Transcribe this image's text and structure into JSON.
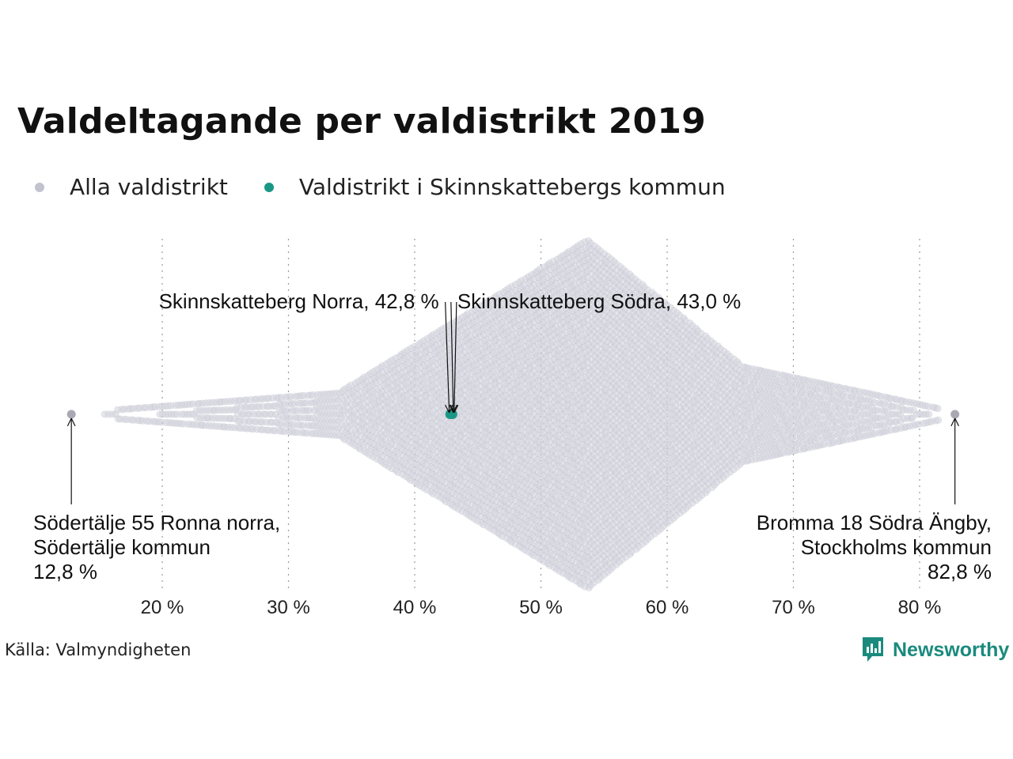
{
  "title": "Valdeltagande per valdistrikt 2019",
  "legend": [
    {
      "label": "Alla valdistrikt",
      "color": "#c3c3cf"
    },
    {
      "label": "Valdistrikt i Skinnskattebergs kommun",
      "color": "#1a9885"
    }
  ],
  "source": "Källa: Valmyndigheten",
  "brand": {
    "name": "Newsworthy",
    "icon": "newsworthy-logo-icon",
    "color": "#1a8a7d"
  },
  "chart_data": {
    "type": "scatter",
    "subtype": "beeswarm",
    "title": "Valdeltagande per valdistrikt 2019",
    "x_unit": "%",
    "xlim": [
      12,
      85
    ],
    "x_ticks": [
      20,
      30,
      40,
      50,
      60,
      70,
      80
    ],
    "x_tick_labels": [
      "20 %",
      "30 %",
      "40 %",
      "50 %",
      "60 %",
      "70 %",
      "80 %"
    ],
    "grid": "vertical dotted",
    "legend_position": "top-left",
    "distribution": {
      "series": "Alla valdistrikt",
      "color": "#c3c3cf",
      "min": 12.8,
      "max": 82.8,
      "mode": 53.7
    },
    "highlight_series": {
      "name": "Valdistrikt i Skinnskattebergs kommun",
      "color": "#1a9885",
      "points": [
        {
          "name": "Skinnskatteberg Norra",
          "value": 42.8,
          "label": "Skinnskatteberg Norra, 42,8 %"
        },
        {
          "name": "Skinnskatteberg Södra",
          "value": 43.0,
          "label": "Skinnskatteberg Södra, 43,0 %"
        }
      ]
    },
    "extremes": [
      {
        "value": 12.8,
        "lines": [
          "Södertälje 55 Ronna norra,",
          "Södertälje kommun",
          "12,8 %"
        ]
      },
      {
        "value": 82.8,
        "lines": [
          "Bromma 18 Södra Ängby,",
          "Stockholms kommun",
          "82,8 %"
        ]
      }
    ]
  }
}
